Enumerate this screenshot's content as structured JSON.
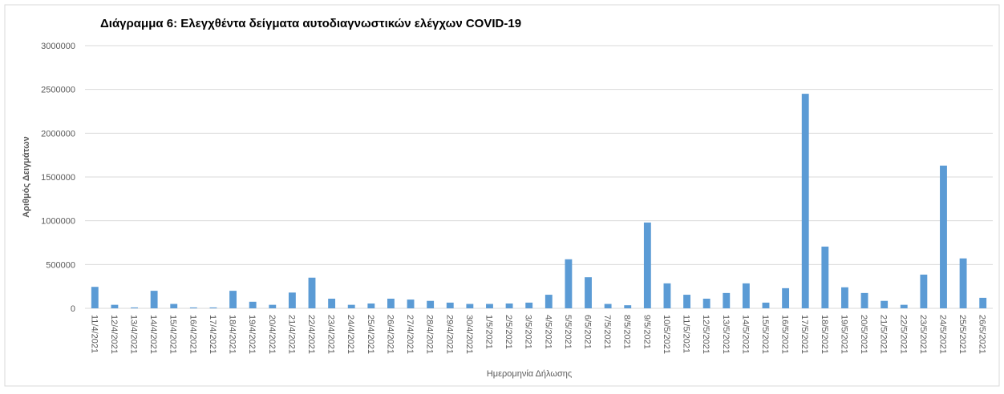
{
  "chart_data": {
    "type": "bar",
    "title": "Διάγραμμα 6: Ελεγχθέντα δείγματα αυτοδιαγνωστικών ελέγχων COVID-19",
    "x_label": "Ημερομηνία Δήλωσης",
    "y_label": "Αριθμός Δειγμάτων",
    "categories": [
      "11/4/2021",
      "12/4/2021",
      "13/4/2021",
      "14/4/2021",
      "15/4/2021",
      "16/4/2021",
      "17/4/2021",
      "18/4/2021",
      "19/4/2021",
      "20/4/2021",
      "21/4/2021",
      "22/4/2021",
      "23/4/2021",
      "24/4/2021",
      "25/4/2021",
      "26/4/2021",
      "27/4/2021",
      "28/4/2021",
      "29/4/2021",
      "30/4/2021",
      "1/5/2021",
      "2/5/2021",
      "3/5/2021",
      "4/5/2021",
      "5/5/2021",
      "6/5/2021",
      "7/5/2021",
      "8/5/2021",
      "9/5/2021",
      "10/5/2021",
      "11/5/2021",
      "12/5/2021",
      "13/5/2021",
      "14/5/2021",
      "15/5/2021",
      "16/5/2021",
      "17/5/2021",
      "18/5/2021",
      "19/5/2021",
      "20/5/2021",
      "21/5/2021",
      "22/5/2021",
      "23/5/2021",
      "24/5/2021",
      "25/5/2021",
      "26/5/2021"
    ],
    "values": [
      245000,
      40000,
      10000,
      200000,
      50000,
      10000,
      10000,
      200000,
      75000,
      40000,
      180000,
      350000,
      110000,
      40000,
      55000,
      110000,
      100000,
      85000,
      65000,
      50000,
      50000,
      55000,
      65000,
      155000,
      560000,
      355000,
      50000,
      35000,
      980000,
      285000,
      155000,
      110000,
      175000,
      285000,
      65000,
      230000,
      2450000,
      705000,
      240000,
      175000,
      85000,
      40000,
      385000,
      1630000,
      570000,
      120000
    ],
    "color": "#5b9bd5",
    "ylim": [
      0,
      3000000
    ],
    "yticks": [
      0,
      500000,
      1000000,
      1500000,
      2000000,
      2500000,
      3000000
    ],
    "grid": true
  }
}
